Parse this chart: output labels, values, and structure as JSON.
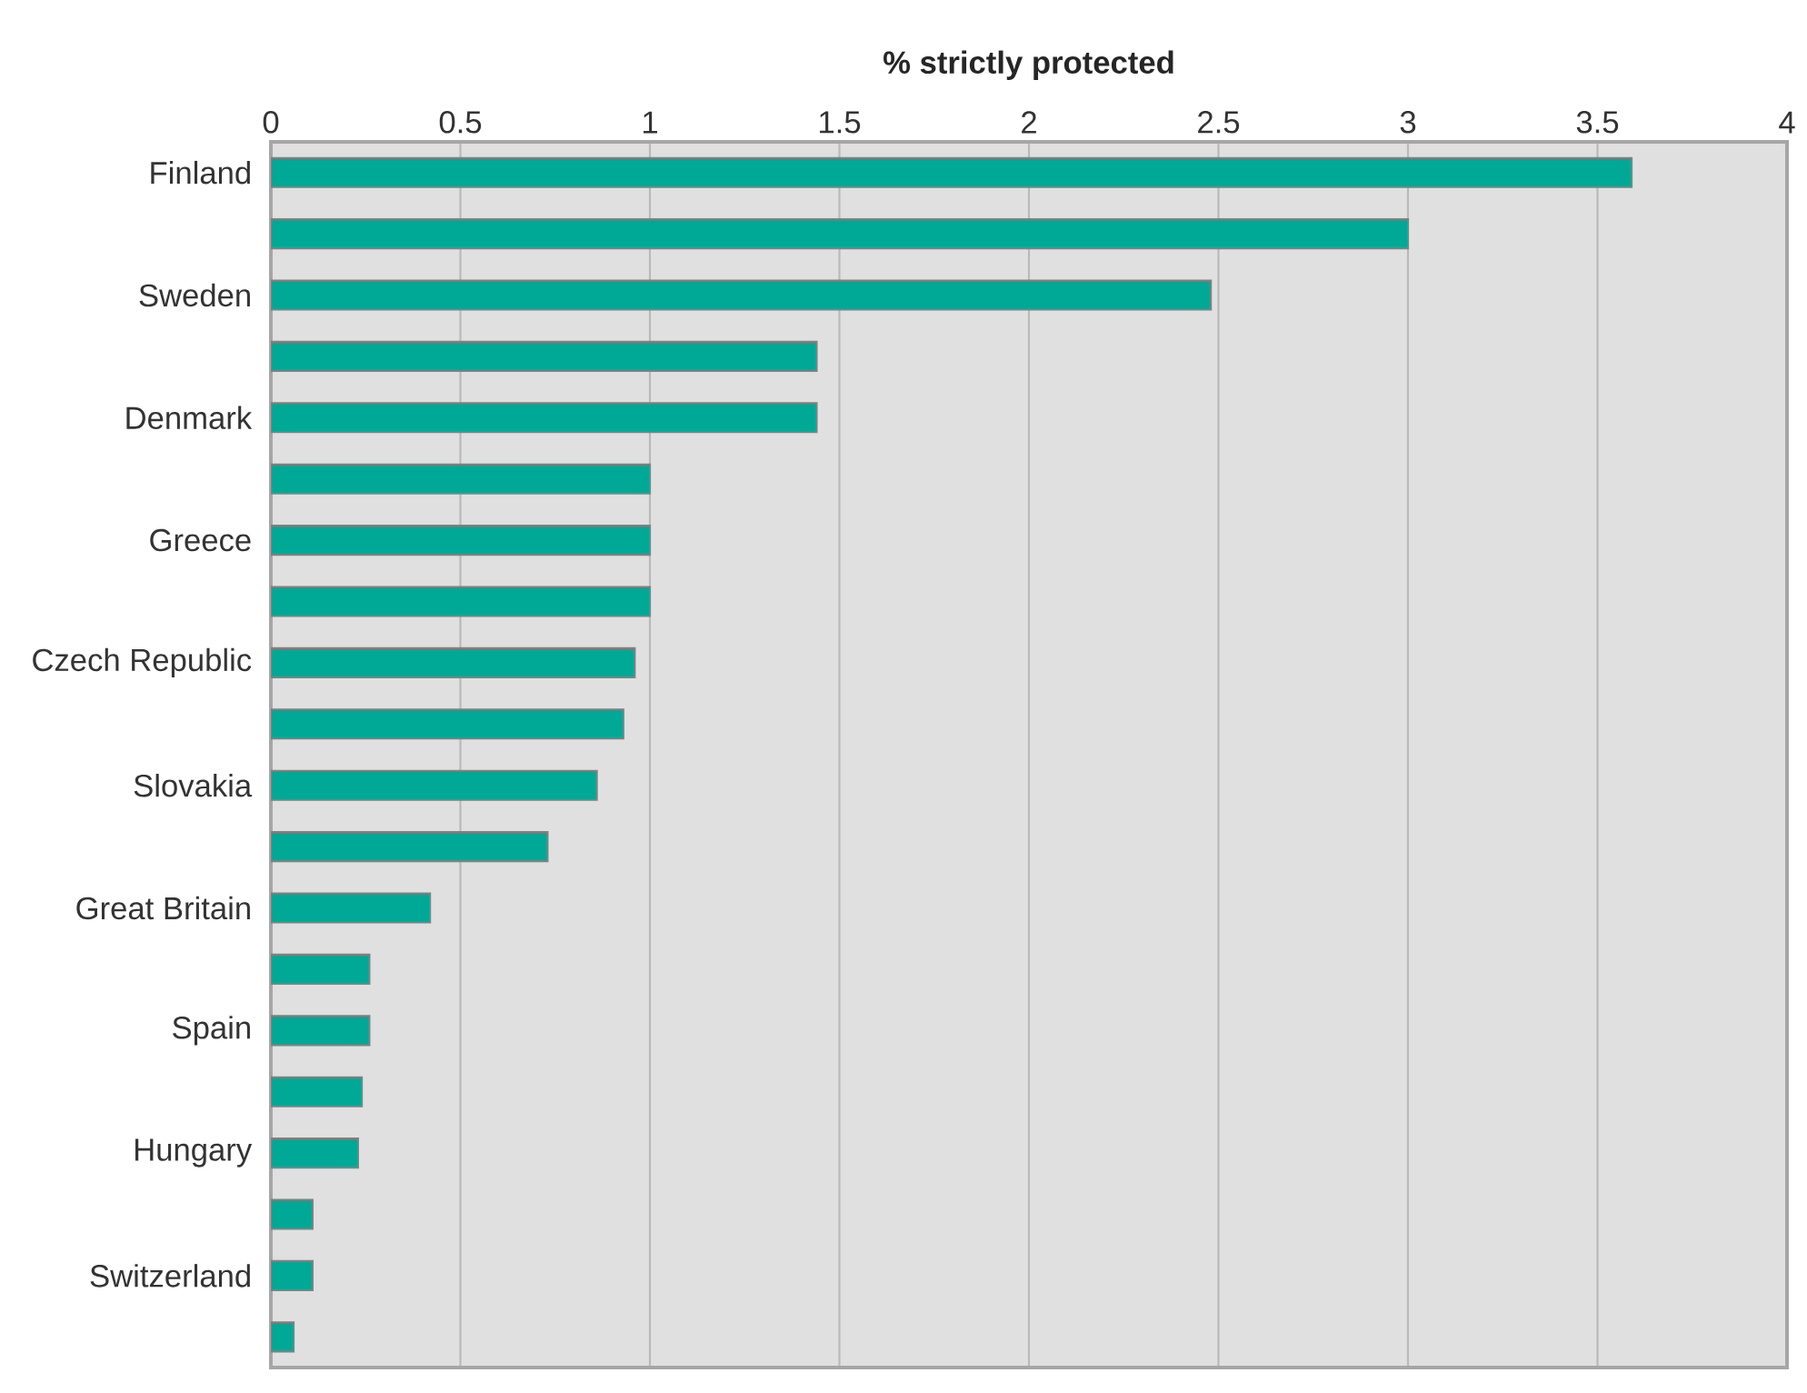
{
  "chart_data": {
    "type": "bar",
    "orientation": "horizontal",
    "xlabel": "% strictly protected",
    "categories": [
      "Finland",
      null,
      "Sweden",
      null,
      "Denmark",
      null,
      "Greece",
      null,
      "Czech Republic",
      null,
      "Slovakia",
      null,
      "Great Britain",
      null,
      "Spain",
      null,
      "Hungary",
      null,
      "Switzerland",
      null
    ],
    "values": [
      3.59,
      3.0,
      2.48,
      1.44,
      1.44,
      1.0,
      1.0,
      1.0,
      0.96,
      0.93,
      0.86,
      0.73,
      0.42,
      0.26,
      0.26,
      0.24,
      0.23,
      0.11,
      0.11,
      0.06
    ],
    "color": "#00a896",
    "xlim": [
      0,
      4
    ],
    "xticks": [
      0,
      0.5,
      1,
      1.5,
      2,
      2.5,
      3,
      3.5,
      4
    ],
    "grid": "x"
  }
}
